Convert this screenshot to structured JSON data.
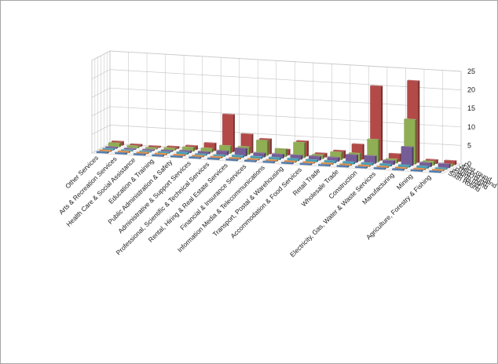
{
  "chart_data": {
    "type": "bar",
    "subtype": "3d-column",
    "title": "",
    "zlim": [
      0,
      25
    ],
    "z_ticks": [
      "0",
      "5",
      "10",
      "15",
      "20",
      "25"
    ],
    "grid": true,
    "legend": "none",
    "categories": [
      "Other Services",
      "Arts & Recreation Services",
      "Health Care & Social Assistance",
      "Education & Training",
      "Public Administration & Safety",
      "Administrative & Support Services",
      "Professional, Scientific & Technical Services",
      "Rental, Hiring & Real Estate Services",
      "Financial & Insurance Services",
      "Information Media & Telecommunications",
      "Transport, Postal & Warehousing",
      "Accommodation & Food Services",
      "Retail Trade",
      "Wholesale Trade",
      "Construction",
      "Electricity, Gas, Water & Waste Services",
      "Manufacturing",
      "Mining",
      "Agriculture, Forestry & Fishing"
    ],
    "series": [
      {
        "name": "First round",
        "color": "#c0504d",
        "values": [
          1,
          0.5,
          0.3,
          0.5,
          1,
          2,
          10,
          5,
          4,
          1.5,
          4,
          1,
          2,
          4,
          20,
          2,
          22,
          1,
          1
        ]
      },
      {
        "name": "Second round",
        "color": "#9bbb59",
        "values": [
          1,
          0.5,
          0.3,
          0.5,
          1,
          1,
          2,
          2,
          4,
          2,
          4,
          1,
          2,
          2,
          6,
          1,
          12,
          1,
          0.5
        ]
      },
      {
        "name": "Third round",
        "color": "#8064a2",
        "values": [
          0.3,
          0.2,
          0.2,
          0.3,
          0.5,
          0.5,
          1,
          2,
          1,
          1,
          1,
          1,
          1,
          2,
          2,
          1,
          5,
          1,
          1
        ]
      },
      {
        "name": "Fourth round",
        "color": "#4bacc6",
        "values": [
          0.3,
          0.2,
          0.2,
          0.3,
          0.5,
          0.3,
          0.3,
          0.5,
          0.5,
          0.5,
          0.5,
          0.5,
          0.5,
          0.5,
          0.5,
          0.5,
          0.5,
          0.5,
          0.3
        ]
      },
      {
        "name": "Fifth round",
        "color": "#f79646",
        "values": [
          0.3,
          0.3,
          0.3,
          0.3,
          0.3,
          0.3,
          0.3,
          0.3,
          0.3,
          0.3,
          0.3,
          0.3,
          0.3,
          0.3,
          0.3,
          0.3,
          0.3,
          0.3,
          0.3
        ]
      },
      {
        "name": "Sixth Round",
        "color": "#4f81bd",
        "values": [
          0.3,
          0.3,
          0.3,
          0.3,
          0.3,
          0.3,
          0.3,
          0.3,
          0.3,
          0.3,
          0.3,
          0.3,
          0.3,
          0.3,
          0.3,
          0.3,
          0.3,
          0.3,
          0.3
        ]
      }
    ]
  }
}
